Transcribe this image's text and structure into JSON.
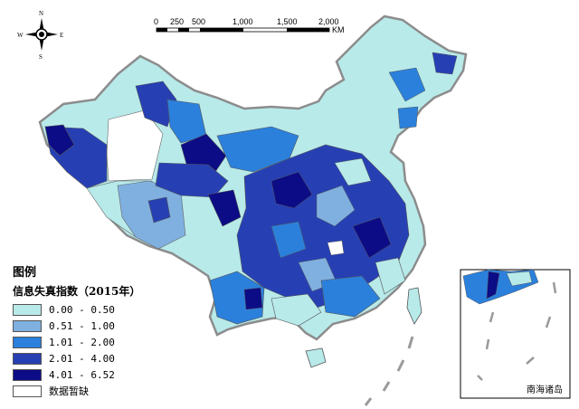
{
  "legend": {
    "title": "图例",
    "subtitle": "信息失真指数（2015年）",
    "items": [
      {
        "label": "0.00 - 0.50",
        "color": "#b8eaea"
      },
      {
        "label": "0.51 - 1.00",
        "color": "#7fb0e0"
      },
      {
        "label": "1.01 - 2.00",
        "color": "#2b80dc"
      },
      {
        "label": "2.01 - 4.00",
        "color": "#2640b4"
      },
      {
        "label": "4.01 - 6.52",
        "color": "#0c0c86"
      },
      {
        "label": "数据暂缺",
        "color": "#ffffff"
      }
    ]
  },
  "scale": {
    "ticks": [
      "0",
      "250",
      "500",
      "1,000",
      "1,500",
      "2,000"
    ],
    "unit": "KM"
  },
  "compass": {
    "n": "N",
    "s": "S",
    "e": "E",
    "w": "W"
  },
  "inset": {
    "label": "南海诸岛"
  }
}
